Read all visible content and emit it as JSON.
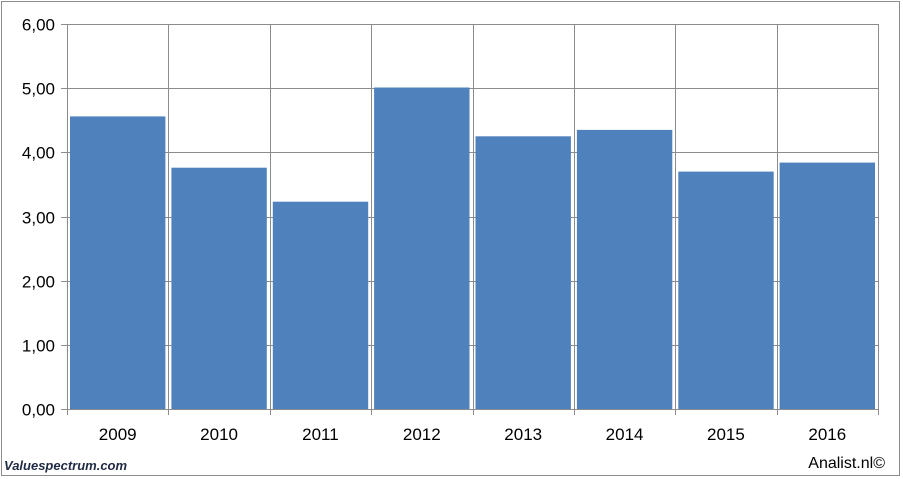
{
  "chart_data": {
    "type": "bar",
    "categories": [
      "2009",
      "2010",
      "2011",
      "2012",
      "2013",
      "2014",
      "2015",
      "2016"
    ],
    "values": [
      4.56,
      3.76,
      3.23,
      5.01,
      4.25,
      4.35,
      3.7,
      3.84
    ],
    "ylim": [
      0,
      6
    ],
    "yticks": [
      "0,00",
      "1,00",
      "2,00",
      "3,00",
      "4,00",
      "5,00",
      "6,00"
    ],
    "grid": true,
    "bar_color": "#4f81bd",
    "grid_color": "#8c8c8c"
  },
  "footer": {
    "left": "Valuespectrum.com",
    "right": "Analist.nl©"
  }
}
